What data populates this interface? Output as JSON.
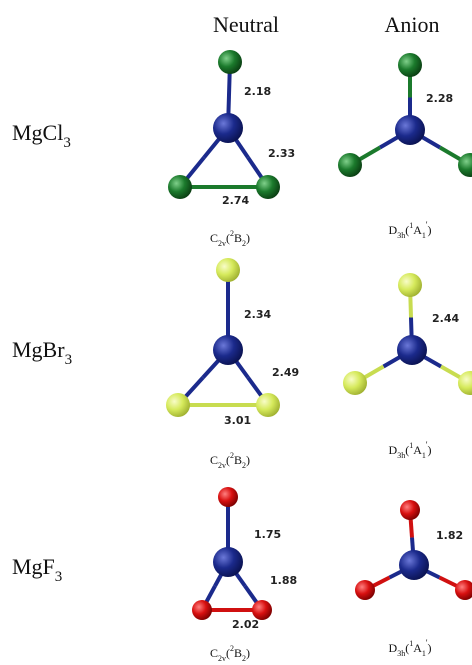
{
  "header": {
    "columns": [
      "Neutral",
      "Anion"
    ]
  },
  "rows": [
    {
      "formula": {
        "base": "MgCl",
        "sub": "3"
      },
      "neutral": {
        "bonds": [
          "2.18",
          "2.33",
          "2.74"
        ],
        "symmetry": {
          "group": "C",
          "group_sub": "2v",
          "open": "(",
          "mult": "2",
          "term": "B",
          "term_sub": "2",
          "close": ")"
        }
      },
      "anion": {
        "bonds": [
          "2.28"
        ],
        "symmetry": {
          "group": "D",
          "group_sub": "3h",
          "open": "(",
          "mult": "1",
          "term": "A",
          "term_sub": "1",
          "prime": "'",
          "close": ")"
        }
      }
    },
    {
      "formula": {
        "base": "MgBr",
        "sub": "3"
      },
      "neutral": {
        "bonds": [
          "2.34",
          "2.49",
          "3.01"
        ],
        "symmetry": {
          "group": "C",
          "group_sub": "2v",
          "open": "(",
          "mult": "2",
          "term": "B",
          "term_sub": "2",
          "close": ")"
        }
      },
      "anion": {
        "bonds": [
          "2.44"
        ],
        "symmetry": {
          "group": "D",
          "group_sub": "3h",
          "open": "(",
          "mult": "1",
          "term": "A",
          "term_sub": "1",
          "prime": "'",
          "close": ")"
        }
      }
    },
    {
      "formula": {
        "base": "MgF",
        "sub": "3"
      },
      "neutral": {
        "bonds": [
          "1.75",
          "1.88",
          "2.02"
        ],
        "symmetry": {
          "group": "C",
          "group_sub": "2v",
          "open": "(",
          "mult": "2",
          "term": "B",
          "term_sub": "2",
          "close": ")"
        }
      },
      "anion": {
        "bonds": [
          "1.82"
        ],
        "symmetry": {
          "group": "D",
          "group_sub": "3h",
          "open": "(",
          "mult": "1",
          "term": "A",
          "term_sub": "1",
          "prime": "'",
          "close": ")"
        }
      }
    }
  ]
}
